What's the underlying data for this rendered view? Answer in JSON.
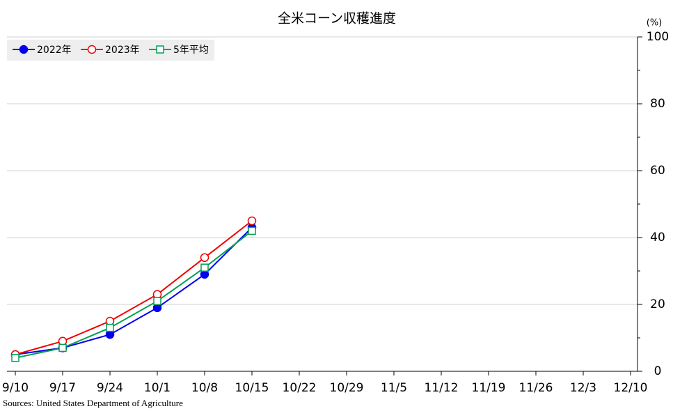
{
  "chart_data": {
    "type": "line",
    "title": "全米コーン収穫進度",
    "y_unit": "(%)",
    "categories": [
      "9/10",
      "9/17",
      "9/24",
      "10/1",
      "10/8",
      "10/15",
      "10/22",
      "10/29",
      "11/5",
      "11/12",
      "11/19",
      "11/26",
      "12/3",
      "12/10"
    ],
    "series": [
      {
        "name": "2022年",
        "color": "#0000ee",
        "marker": "filled-circle",
        "values": [
          5,
          7,
          11,
          19,
          29,
          43,
          null,
          null,
          null,
          null,
          null,
          null,
          null,
          null
        ]
      },
      {
        "name": "2023年",
        "color": "#ee0000",
        "marker": "open-circle",
        "values": [
          5,
          9,
          15,
          23,
          34,
          45,
          null,
          null,
          null,
          null,
          null,
          null,
          null,
          null
        ]
      },
      {
        "name": "5年平均",
        "color": "#00a050",
        "marker": "open-square",
        "values": [
          4,
          7,
          13,
          21,
          31,
          42,
          null,
          null,
          null,
          null,
          null,
          null,
          null,
          null
        ]
      }
    ],
    "ylim": [
      0,
      100
    ],
    "yticks": [
      0,
      20,
      40,
      60,
      80,
      100
    ],
    "yminor_ticks": [
      10,
      30,
      50,
      70,
      90
    ],
    "y_axis_side": "right",
    "grid": true,
    "legend": "top-left",
    "source": "Sources: United States Department of Agriculture"
  }
}
